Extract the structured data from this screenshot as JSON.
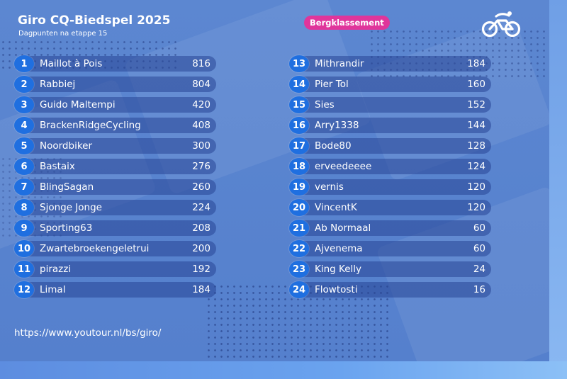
{
  "header": {
    "title": "Giro CQ-Biedspel 2025",
    "subtitle": "Dagpunten na etappe 15",
    "badge": "Bergklassement",
    "logo_icon": "cycling-logo-icon"
  },
  "colors": {
    "background": "#5580cd",
    "badge": "#e0359b",
    "rank_circle": "#1f6fe0",
    "row_bar": "#2f4f9a",
    "text": "#ffffff"
  },
  "standings": {
    "left": [
      {
        "rank": "1",
        "name": "Maillot à Pois",
        "points": "816"
      },
      {
        "rank": "2",
        "name": "Rabbiej",
        "points": "804"
      },
      {
        "rank": "3",
        "name": "Guido Maltempi",
        "points": "420"
      },
      {
        "rank": "4",
        "name": "BrackenRidgeCycling",
        "points": "408"
      },
      {
        "rank": "5",
        "name": "Noordbiker",
        "points": "300"
      },
      {
        "rank": "6",
        "name": "Bastaix",
        "points": "276"
      },
      {
        "rank": "7",
        "name": "BlingSagan",
        "points": "260"
      },
      {
        "rank": "8",
        "name": "Sjonge Jonge",
        "points": "224"
      },
      {
        "rank": "9",
        "name": "Sporting63",
        "points": "208"
      },
      {
        "rank": "10",
        "name": "Zwartebroekengeletrui",
        "points": "200"
      },
      {
        "rank": "11",
        "name": "pirazzi",
        "points": "192"
      },
      {
        "rank": "12",
        "name": "Limal",
        "points": "184"
      }
    ],
    "right": [
      {
        "rank": "13",
        "name": "Mithrandir",
        "points": "184"
      },
      {
        "rank": "14",
        "name": "Pier Tol",
        "points": "160"
      },
      {
        "rank": "15",
        "name": "Sies",
        "points": "152"
      },
      {
        "rank": "16",
        "name": "Arry1338",
        "points": "144"
      },
      {
        "rank": "17",
        "name": "Bode80",
        "points": "128"
      },
      {
        "rank": "18",
        "name": "erveedeeee",
        "points": "124"
      },
      {
        "rank": "19",
        "name": "vernis",
        "points": "120"
      },
      {
        "rank": "20",
        "name": "VincentK",
        "points": "120"
      },
      {
        "rank": "21",
        "name": "Ab Normaal",
        "points": "60"
      },
      {
        "rank": "22",
        "name": "Ajvenema",
        "points": "60"
      },
      {
        "rank": "23",
        "name": "King Kelly",
        "points": "24"
      },
      {
        "rank": "24",
        "name": "Flowtosti",
        "points": "16"
      }
    ]
  },
  "footer": {
    "url": "https://www.youtour.nl/bs/giro/"
  }
}
